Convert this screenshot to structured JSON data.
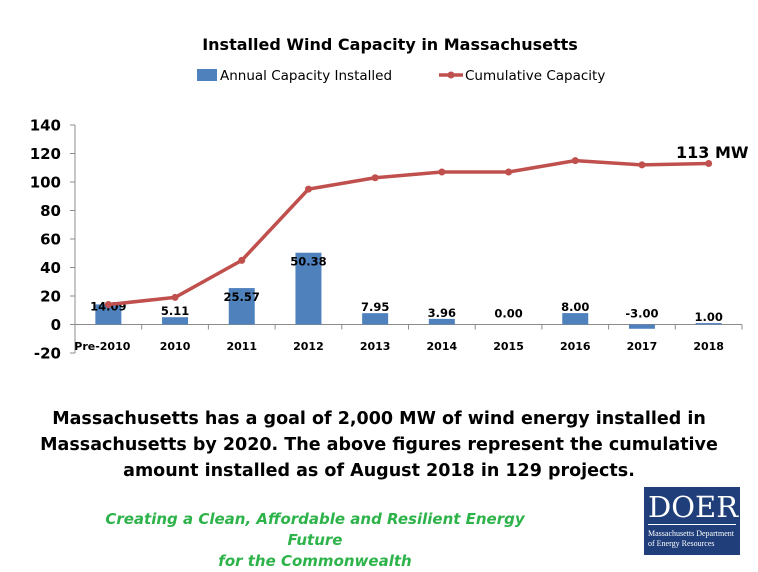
{
  "chart_data": {
    "type": "bar+line",
    "title": "Installed Wind Capacity in Massachusetts",
    "categories": [
      "Pre-2010",
      "2010",
      "2011",
      "2012",
      "2013",
      "2014",
      "2015",
      "2016",
      "2017",
      "2018"
    ],
    "series": [
      {
        "name": "Annual Capacity Installed",
        "kind": "bar",
        "values": [
          14.09,
          5.11,
          25.57,
          50.38,
          7.95,
          3.96,
          0.0,
          8.0,
          -3.0,
          1.0
        ],
        "labels": [
          "14.09",
          "5.11",
          "25.57",
          "50.38",
          "7.95",
          "3.96",
          "0.00",
          "8.00",
          "-3.00",
          "1.00"
        ]
      },
      {
        "name": "Cumulative Capacity",
        "kind": "line",
        "values": [
          14,
          19,
          45,
          95,
          103,
          107,
          107,
          115,
          112,
          113
        ]
      }
    ],
    "ylim": [
      -20,
      140
    ],
    "yticks": [
      -20,
      0,
      20,
      40,
      60,
      80,
      100,
      120,
      140
    ],
    "legend_position": "top",
    "annotation": "113 MW",
    "colors": {
      "bar": "#4f81bd",
      "line": "#c0504d"
    }
  },
  "caption": "Massachusetts has a goal of 2,000 MW of wind energy installed in Massachusetts by 2020. The above figures represent the cumulative amount installed as of August 2018 in 129 projects.",
  "tagline": {
    "line1": "Creating a Clean, Affordable and Resilient Energy Future",
    "line2": "for the Commonwealth",
    "color": "#2db34a"
  },
  "logo": {
    "mark": "DOER",
    "line1": "Massachusetts Department",
    "line2": "of Energy Resources",
    "color": "#1f3e7a"
  }
}
